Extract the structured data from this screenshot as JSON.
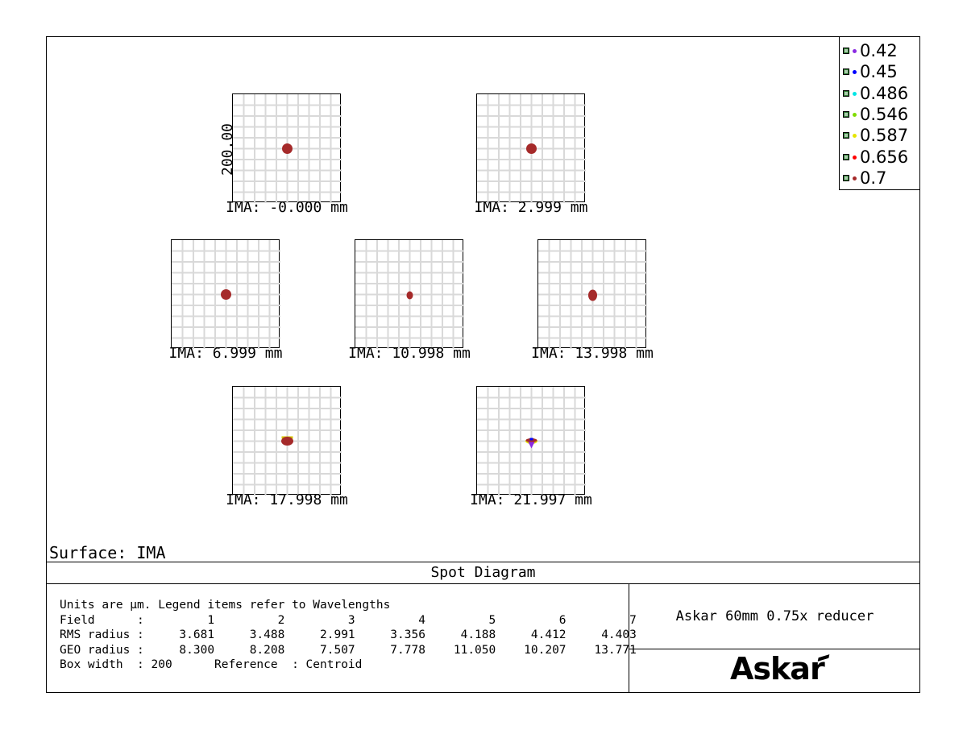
{
  "title": "Spot Diagram",
  "surface_label": "Surface: IMA",
  "scale_label": "200.00",
  "fields": [
    {
      "label": "IMA: -0.000 mm",
      "spot": "round"
    },
    {
      "label": "IMA: 2.999 mm",
      "spot": "round"
    },
    {
      "label": "IMA: 6.999 mm",
      "spot": "round"
    },
    {
      "label": "IMA: 10.998 mm",
      "spot": "small"
    },
    {
      "label": "IMA: 13.998 mm",
      "spot": "oval"
    },
    {
      "label": "IMA: 17.998 mm",
      "spot": "flat"
    },
    {
      "label": "IMA: 21.997 mm",
      "spot": "comet"
    }
  ],
  "legend": [
    {
      "label": "0.42",
      "color": "#8a2be2"
    },
    {
      "label": "0.45",
      "color": "#0000ff"
    },
    {
      "label": "0.486",
      "color": "#00e5e5"
    },
    {
      "label": "0.546",
      "color": "#7fdc00"
    },
    {
      "label": "0.587",
      "color": "#e5e500"
    },
    {
      "label": "0.656",
      "color": "#ff0000"
    },
    {
      "label": "0.7",
      "color": "#a52a2a"
    }
  ],
  "info": {
    "line1": "Units are µm. Legend items refer to Wavelengths",
    "field_header": "Field      :         1         2         3         4         5         6         7",
    "rms_row": "RMS radius :     3.681     3.488     2.991     3.356     4.188     4.412     4.403",
    "geo_row": "GEO radius :     8.300     8.208     7.507     7.778    11.050    10.207    13.771",
    "box_row": "Box width  : 200      Reference  : Centroid"
  },
  "table": {
    "fields": [
      1,
      2,
      3,
      4,
      5,
      6,
      7
    ],
    "rms_radius": [
      3.681,
      3.488,
      2.991,
      3.356,
      4.188,
      4.412,
      4.403
    ],
    "geo_radius": [
      8.3,
      8.208,
      7.507,
      7.778,
      11.05,
      10.207,
      13.771
    ],
    "box_width": "200",
    "reference": "Centroid"
  },
  "description": "Askar 60mm 0.75x reducer",
  "logo_text": "Askar",
  "colors": {
    "spot": "#a52a2a",
    "grid": "#d9d9d9"
  }
}
